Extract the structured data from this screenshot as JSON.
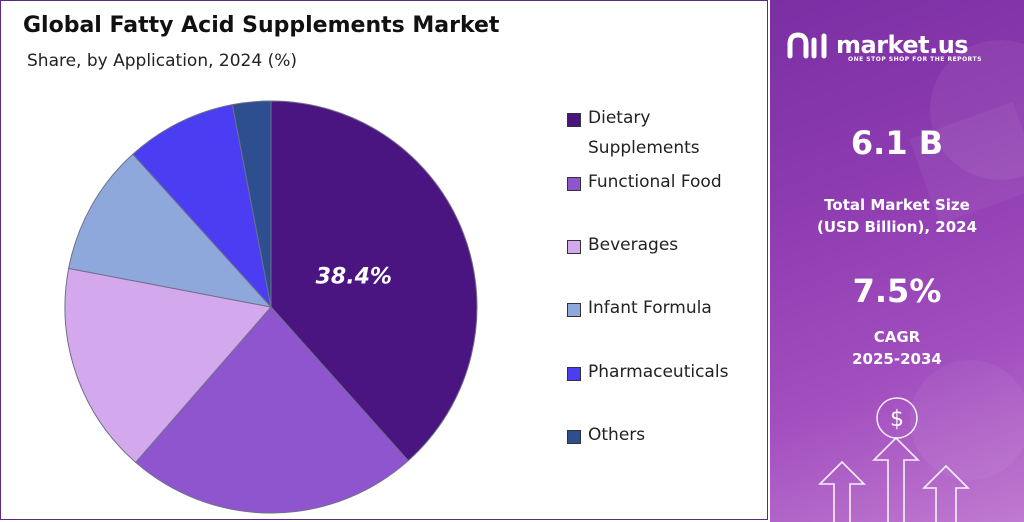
{
  "title": "Global Fatty Acid Supplements Market",
  "subtitle": "Share, by Application, 2024 (%)",
  "chart_data": {
    "type": "pie",
    "categories": [
      "Dietary Supplements",
      "Functional Food",
      "Beverages",
      "Infant Formula",
      "Pharmaceuticals",
      "Others"
    ],
    "values": [
      38.4,
      23.0,
      16.6,
      10.3,
      8.7,
      3.0
    ],
    "colors": [
      "#4a1580",
      "#8e55cf",
      "#d3a8ed",
      "#8fa8dc",
      "#4a3df2",
      "#2e4f8f"
    ],
    "data_labels": [
      "38.4%"
    ],
    "legend_position": "right"
  },
  "legend": [
    {
      "label": "Dietary",
      "label2": "Supplements",
      "color": "#4a1580"
    },
    {
      "label": "Functional Food",
      "color": "#8e55cf"
    },
    {
      "label": "Beverages",
      "color": "#d3a8ed"
    },
    {
      "label": "Infant Formula",
      "color": "#8fa8dc"
    },
    {
      "label": "Pharmaceuticals",
      "color": "#4a3df2"
    },
    {
      "label": "Others",
      "color": "#2e4f8f"
    }
  ],
  "sidebar": {
    "brand": "market.us",
    "tagline": "ONE STOP SHOP FOR THE REPORTS",
    "market_size": "6.1 B",
    "market_size_label1": "Total Market Size",
    "market_size_label2": "(USD Billion), 2024",
    "cagr": "7.5%",
    "cagr_label1": "CAGR",
    "cagr_label2": "2025-2034",
    "dollar": "$"
  }
}
